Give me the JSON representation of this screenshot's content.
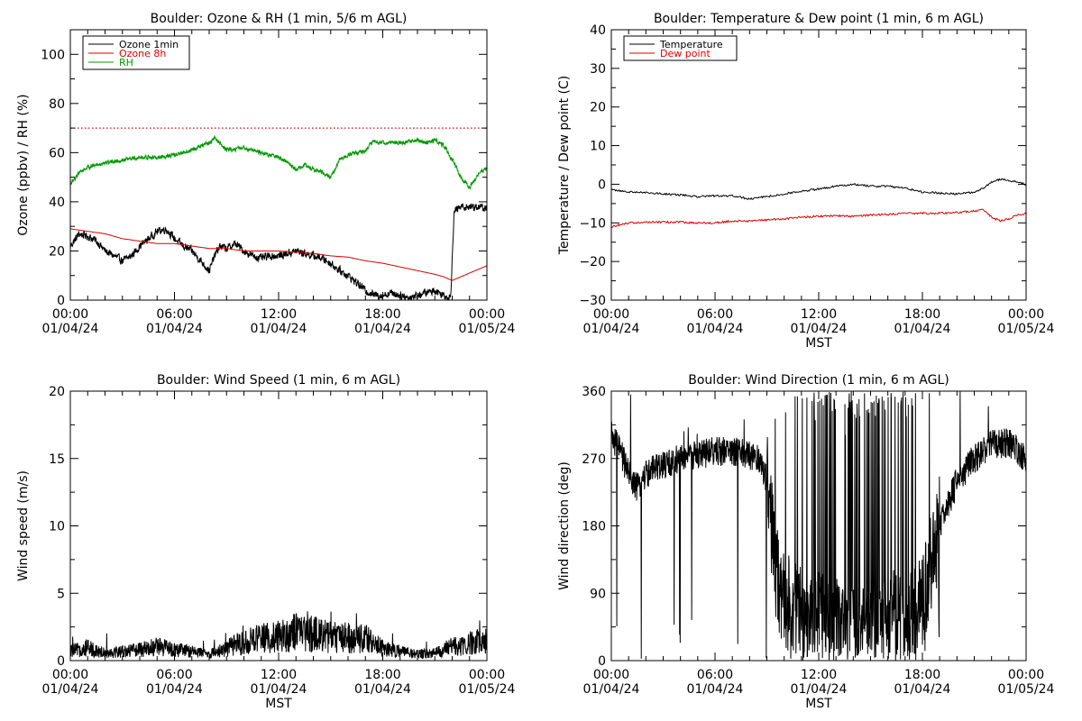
{
  "chart_data": [
    {
      "id": "ozone",
      "type": "line",
      "title": "Boulder: Ozone & RH (1 min, 5/6 m AGL)",
      "xlabel": "",
      "ylabel": "Ozone (ppbv) / RH (%)",
      "ylim": [
        0,
        110
      ],
      "yticks": [
        0,
        20,
        40,
        60,
        80,
        100
      ],
      "ytick_labels": [
        "0",
        "20",
        "40",
        "60",
        "80",
        "100"
      ],
      "xlim": [
        0,
        24
      ],
      "xticks": [
        0,
        6,
        12,
        18,
        24
      ],
      "xtick_labels": [
        [
          "00:00",
          "01/04/24"
        ],
        [
          "06:00",
          "01/04/24"
        ],
        [
          "12:00",
          "01/04/24"
        ],
        [
          "18:00",
          "01/04/24"
        ],
        [
          "00:00",
          "01/05/24"
        ]
      ],
      "x_units": "hours after 00:00 01/04/24 MST",
      "legend": "top-left",
      "reference_line": {
        "y": 70,
        "color": "#dd0000",
        "style": "dotted"
      },
      "series": [
        {
          "name": "Ozone 1min",
          "color": "#000000",
          "noisy": true,
          "x": [
            0,
            0.5,
            1,
            1.5,
            2,
            2.5,
            3,
            3.5,
            4,
            4.5,
            5,
            5.5,
            6,
            6.5,
            7,
            7.5,
            8,
            8.3,
            8.6,
            9,
            9.5,
            10,
            10.5,
            11,
            11.5,
            12,
            12.5,
            13,
            13.5,
            14,
            14.5,
            15,
            15.5,
            16,
            16.5,
            17,
            17.5,
            18,
            18.5,
            19,
            19.5,
            20,
            20.5,
            21,
            21.5,
            21.9,
            22.1,
            22.5,
            23,
            23.5,
            24
          ],
          "y": [
            22,
            27,
            26,
            24,
            20,
            18,
            16,
            18,
            22,
            25,
            28,
            29,
            25,
            22,
            20,
            16,
            12,
            18,
            22,
            21,
            23,
            20,
            18,
            17,
            18,
            18,
            19,
            20,
            19,
            18,
            17,
            15,
            12,
            10,
            7,
            4,
            2,
            2,
            3,
            2,
            1,
            2,
            3,
            4,
            2,
            1,
            36,
            38,
            38,
            38,
            37
          ]
        },
        {
          "name": "Ozone 8h",
          "color": "#dd0000",
          "noisy": false,
          "x": [
            0,
            1,
            2,
            3,
            4,
            5,
            6,
            7,
            8,
            9,
            10,
            11,
            12,
            13,
            14,
            15,
            16,
            17,
            18,
            19,
            20,
            21,
            21.5,
            22,
            23,
            24
          ],
          "y": [
            29,
            28,
            27,
            25,
            24,
            23,
            23,
            22,
            21,
            21,
            20,
            20,
            20,
            19.5,
            19,
            18,
            17.5,
            16,
            15,
            13.5,
            12,
            10.5,
            9.5,
            8,
            11,
            14
          ]
        },
        {
          "name": "RH",
          "color": "#009900",
          "noisy": true,
          "x": [
            0,
            0.5,
            1,
            2,
            3,
            4,
            5,
            6,
            7,
            8,
            8.3,
            9,
            10,
            11,
            12,
            12.5,
            13,
            13.5,
            14,
            14.5,
            15,
            15.5,
            16,
            17,
            17.5,
            18,
            19,
            20,
            20.5,
            21,
            21.5,
            22,
            22.5,
            23,
            23.5,
            24
          ],
          "y": [
            47,
            52,
            54,
            56,
            57,
            58,
            58,
            59,
            61,
            64,
            66,
            61,
            62,
            60,
            58,
            56,
            53,
            55,
            53,
            52,
            50,
            57,
            59,
            61,
            65,
            64,
            64,
            65,
            64,
            65,
            63,
            57,
            50,
            46,
            51,
            54
          ]
        }
      ]
    },
    {
      "id": "temperature",
      "type": "line",
      "title": "Boulder: Temperature & Dew point (1 min, 6 m AGL)",
      "xlabel": "MST",
      "ylabel": "Temperature / Dew point (C)",
      "ylim": [
        -30,
        40
      ],
      "yticks": [
        -30,
        -20,
        -10,
        0,
        10,
        20,
        30,
        40
      ],
      "ytick_labels": [
        "−30",
        "−20",
        "−10",
        "0",
        "10",
        "20",
        "30",
        "40"
      ],
      "xlim": [
        0,
        24
      ],
      "xticks": [
        0,
        6,
        12,
        18,
        24
      ],
      "xtick_labels": [
        [
          "00:00",
          "01/04/24"
        ],
        [
          "06:00",
          "01/04/24"
        ],
        [
          "12:00",
          "01/04/24"
        ],
        [
          "18:00",
          "01/04/24"
        ],
        [
          "00:00",
          "01/05/24"
        ]
      ],
      "x_units": "hours after 00:00 01/04/24 MST",
      "legend": "top-left",
      "series": [
        {
          "name": "Temperature",
          "color": "#000000",
          "noisy": false,
          "x": [
            0,
            1,
            2,
            3,
            4,
            5,
            6,
            7,
            8,
            9,
            10,
            11,
            12,
            13,
            14,
            15,
            16,
            17,
            18,
            19,
            20,
            21,
            21.5,
            22,
            22.5,
            23,
            23.5,
            24
          ],
          "y": [
            -1.5,
            -2,
            -2.2,
            -2.5,
            -2.8,
            -3.2,
            -3,
            -3,
            -3.8,
            -3.2,
            -2.5,
            -1.8,
            -1.2,
            -0.5,
            0,
            -0.5,
            -0.5,
            -1,
            -2,
            -2.3,
            -2.5,
            -2,
            -1,
            0.5,
            1.3,
            1,
            0.5,
            0
          ]
        },
        {
          "name": "Dew point",
          "color": "#dd0000",
          "noisy": false,
          "x": [
            0,
            1,
            2,
            3,
            4,
            5,
            6,
            7,
            8,
            9,
            10,
            11,
            12,
            13,
            14,
            15,
            16,
            17,
            18,
            19,
            20,
            21,
            21.5,
            22,
            22.5,
            23,
            23.5,
            24
          ],
          "y": [
            -11,
            -10,
            -9.8,
            -9.8,
            -9.8,
            -10,
            -10,
            -9.5,
            -9.5,
            -9.2,
            -9,
            -8.5,
            -8.3,
            -8.2,
            -8.3,
            -8,
            -7.8,
            -7.5,
            -7.5,
            -7.5,
            -7.3,
            -7,
            -6.5,
            -8.5,
            -9.5,
            -9,
            -8,
            -7.5
          ]
        }
      ]
    },
    {
      "id": "wind-speed",
      "type": "line",
      "title": "Boulder: Wind Speed (1 min, 6 m AGL)",
      "xlabel": "MST",
      "ylabel": "Wind speed (m/s)",
      "ylim": [
        0,
        20
      ],
      "yticks": [
        0,
        5,
        10,
        15,
        20
      ],
      "ytick_labels": [
        "0",
        "5",
        "10",
        "15",
        "20"
      ],
      "xlim": [
        0,
        24
      ],
      "xticks": [
        0,
        6,
        12,
        18,
        24
      ],
      "xtick_labels": [
        [
          "00:00",
          "01/04/24"
        ],
        [
          "06:00",
          "01/04/24"
        ],
        [
          "12:00",
          "01/04/24"
        ],
        [
          "18:00",
          "01/04/24"
        ],
        [
          "00:00",
          "01/05/24"
        ]
      ],
      "x_units": "hours after 00:00 01/04/24 MST",
      "series": [
        {
          "name": "",
          "color": "#000000",
          "noisy": true,
          "x": [
            0,
            1,
            2,
            3,
            4,
            5,
            6,
            7,
            8,
            9,
            10,
            11,
            12,
            13,
            14,
            15,
            16,
            17,
            18,
            19,
            20,
            21,
            22,
            23,
            24
          ],
          "y": [
            0.6,
            0.8,
            0.5,
            0.6,
            0.7,
            0.9,
            0.7,
            0.6,
            0.4,
            0.8,
            1.2,
            1.4,
            1.6,
            1.8,
            1.7,
            1.5,
            1.5,
            1.4,
            0.8,
            0.6,
            0.4,
            0.5,
            0.9,
            1.1,
            1.3
          ]
        }
      ]
    },
    {
      "id": "wind-direction",
      "type": "line",
      "title": "Boulder: Wind Direction (1 min, 6 m AGL)",
      "xlabel": "MST",
      "ylabel": "Wind direction (deg)",
      "ylim": [
        0,
        360
      ],
      "yticks": [
        0,
        90,
        180,
        270,
        360
      ],
      "ytick_labels": [
        "0",
        "90",
        "180",
        "270",
        "360"
      ],
      "xlim": [
        0,
        24
      ],
      "xticks": [
        0,
        6,
        12,
        18,
        24
      ],
      "xtick_labels": [
        [
          "00:00",
          "01/04/24"
        ],
        [
          "06:00",
          "01/04/24"
        ],
        [
          "12:00",
          "01/04/24"
        ],
        [
          "18:00",
          "01/04/24"
        ],
        [
          "00:00",
          "01/05/24"
        ]
      ],
      "x_units": "hours after 00:00 01/04/24 MST",
      "series": [
        {
          "name": "",
          "color": "#000000",
          "noisy": true,
          "wrapping": true,
          "x": [
            0,
            0.5,
            1,
            1.5,
            2,
            3,
            4,
            5,
            6,
            7,
            8,
            8.5,
            9,
            9.5,
            10,
            11,
            12,
            13,
            14,
            15,
            16,
            17,
            18,
            19,
            20,
            21,
            22,
            23,
            24
          ],
          "y": [
            300,
            280,
            250,
            230,
            250,
            260,
            270,
            275,
            280,
            280,
            275,
            270,
            240,
            120,
            80,
            60,
            50,
            40,
            30,
            40,
            60,
            40,
            80,
            180,
            240,
            270,
            290,
            290,
            270
          ]
        }
      ]
    }
  ]
}
